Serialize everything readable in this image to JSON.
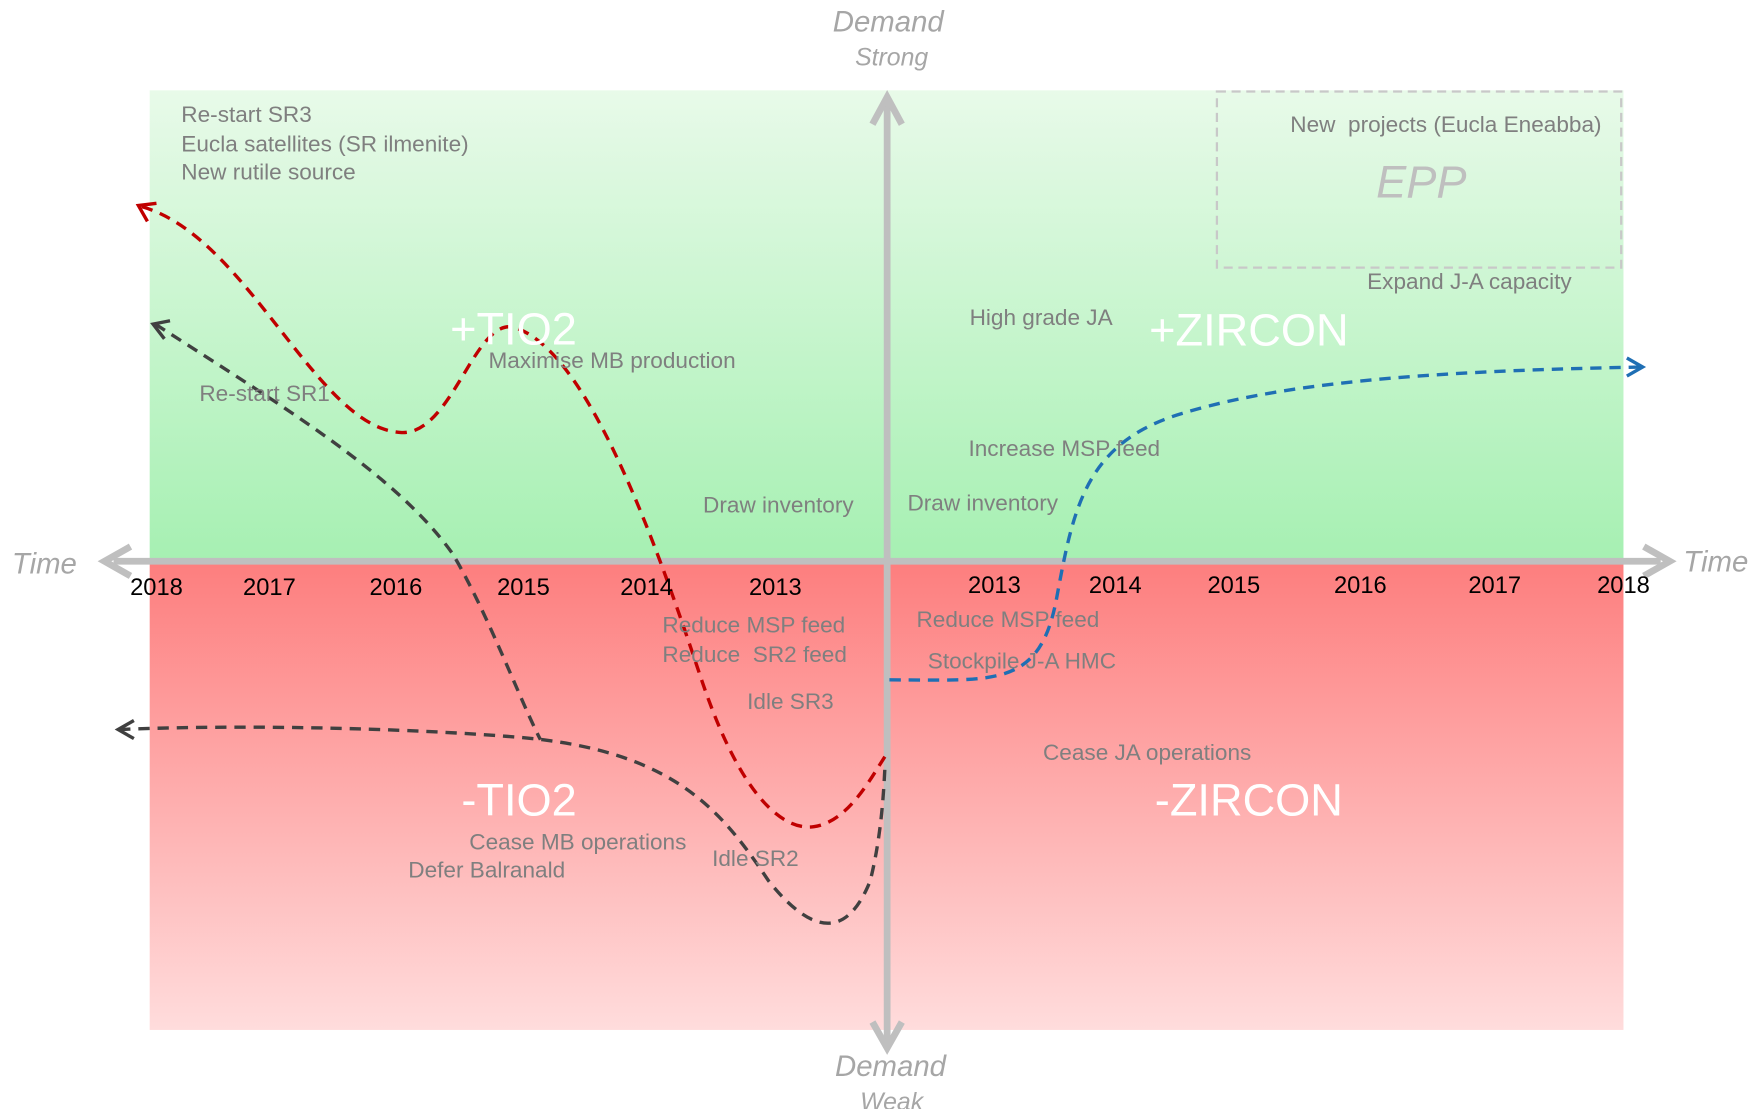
{
  "axes": {
    "top": "Demand",
    "top_sub": "Strong",
    "bottom": "Demand",
    "bottom_sub": "Weak",
    "left": "Time",
    "right": "Time"
  },
  "years_left": [
    "2018",
    "2017",
    "2016",
    "2015",
    "2014",
    "2013"
  ],
  "years_right": [
    "2013",
    "2014",
    "2015",
    "2016",
    "2017",
    "2018"
  ],
  "quadrants": [
    "+TIO2",
    "+ZIRCON",
    "-TIO2",
    "-ZIRCON"
  ],
  "epp": {
    "label": "EPP",
    "title": "New  projects (Eucla Eneabba)"
  },
  "annotations": [
    "Re-start SR3",
    "Eucla satellites (SR ilmenite)",
    "New rutile source",
    "Maximise MB production",
    "Re-start SR1",
    "Draw inventory",
    "Draw inventory",
    "High grade JA",
    "Increase MSP feed",
    "Expand J-A capacity",
    "Reduce MSP feed",
    "Reduce  SR2 feed",
    "Idle SR3",
    "Reduce MSP feed",
    "Stockpile J-A HMC",
    "Cease JA operations",
    "Cease MB operations",
    "Defer Balranald",
    "Idle SR2"
  ]
}
